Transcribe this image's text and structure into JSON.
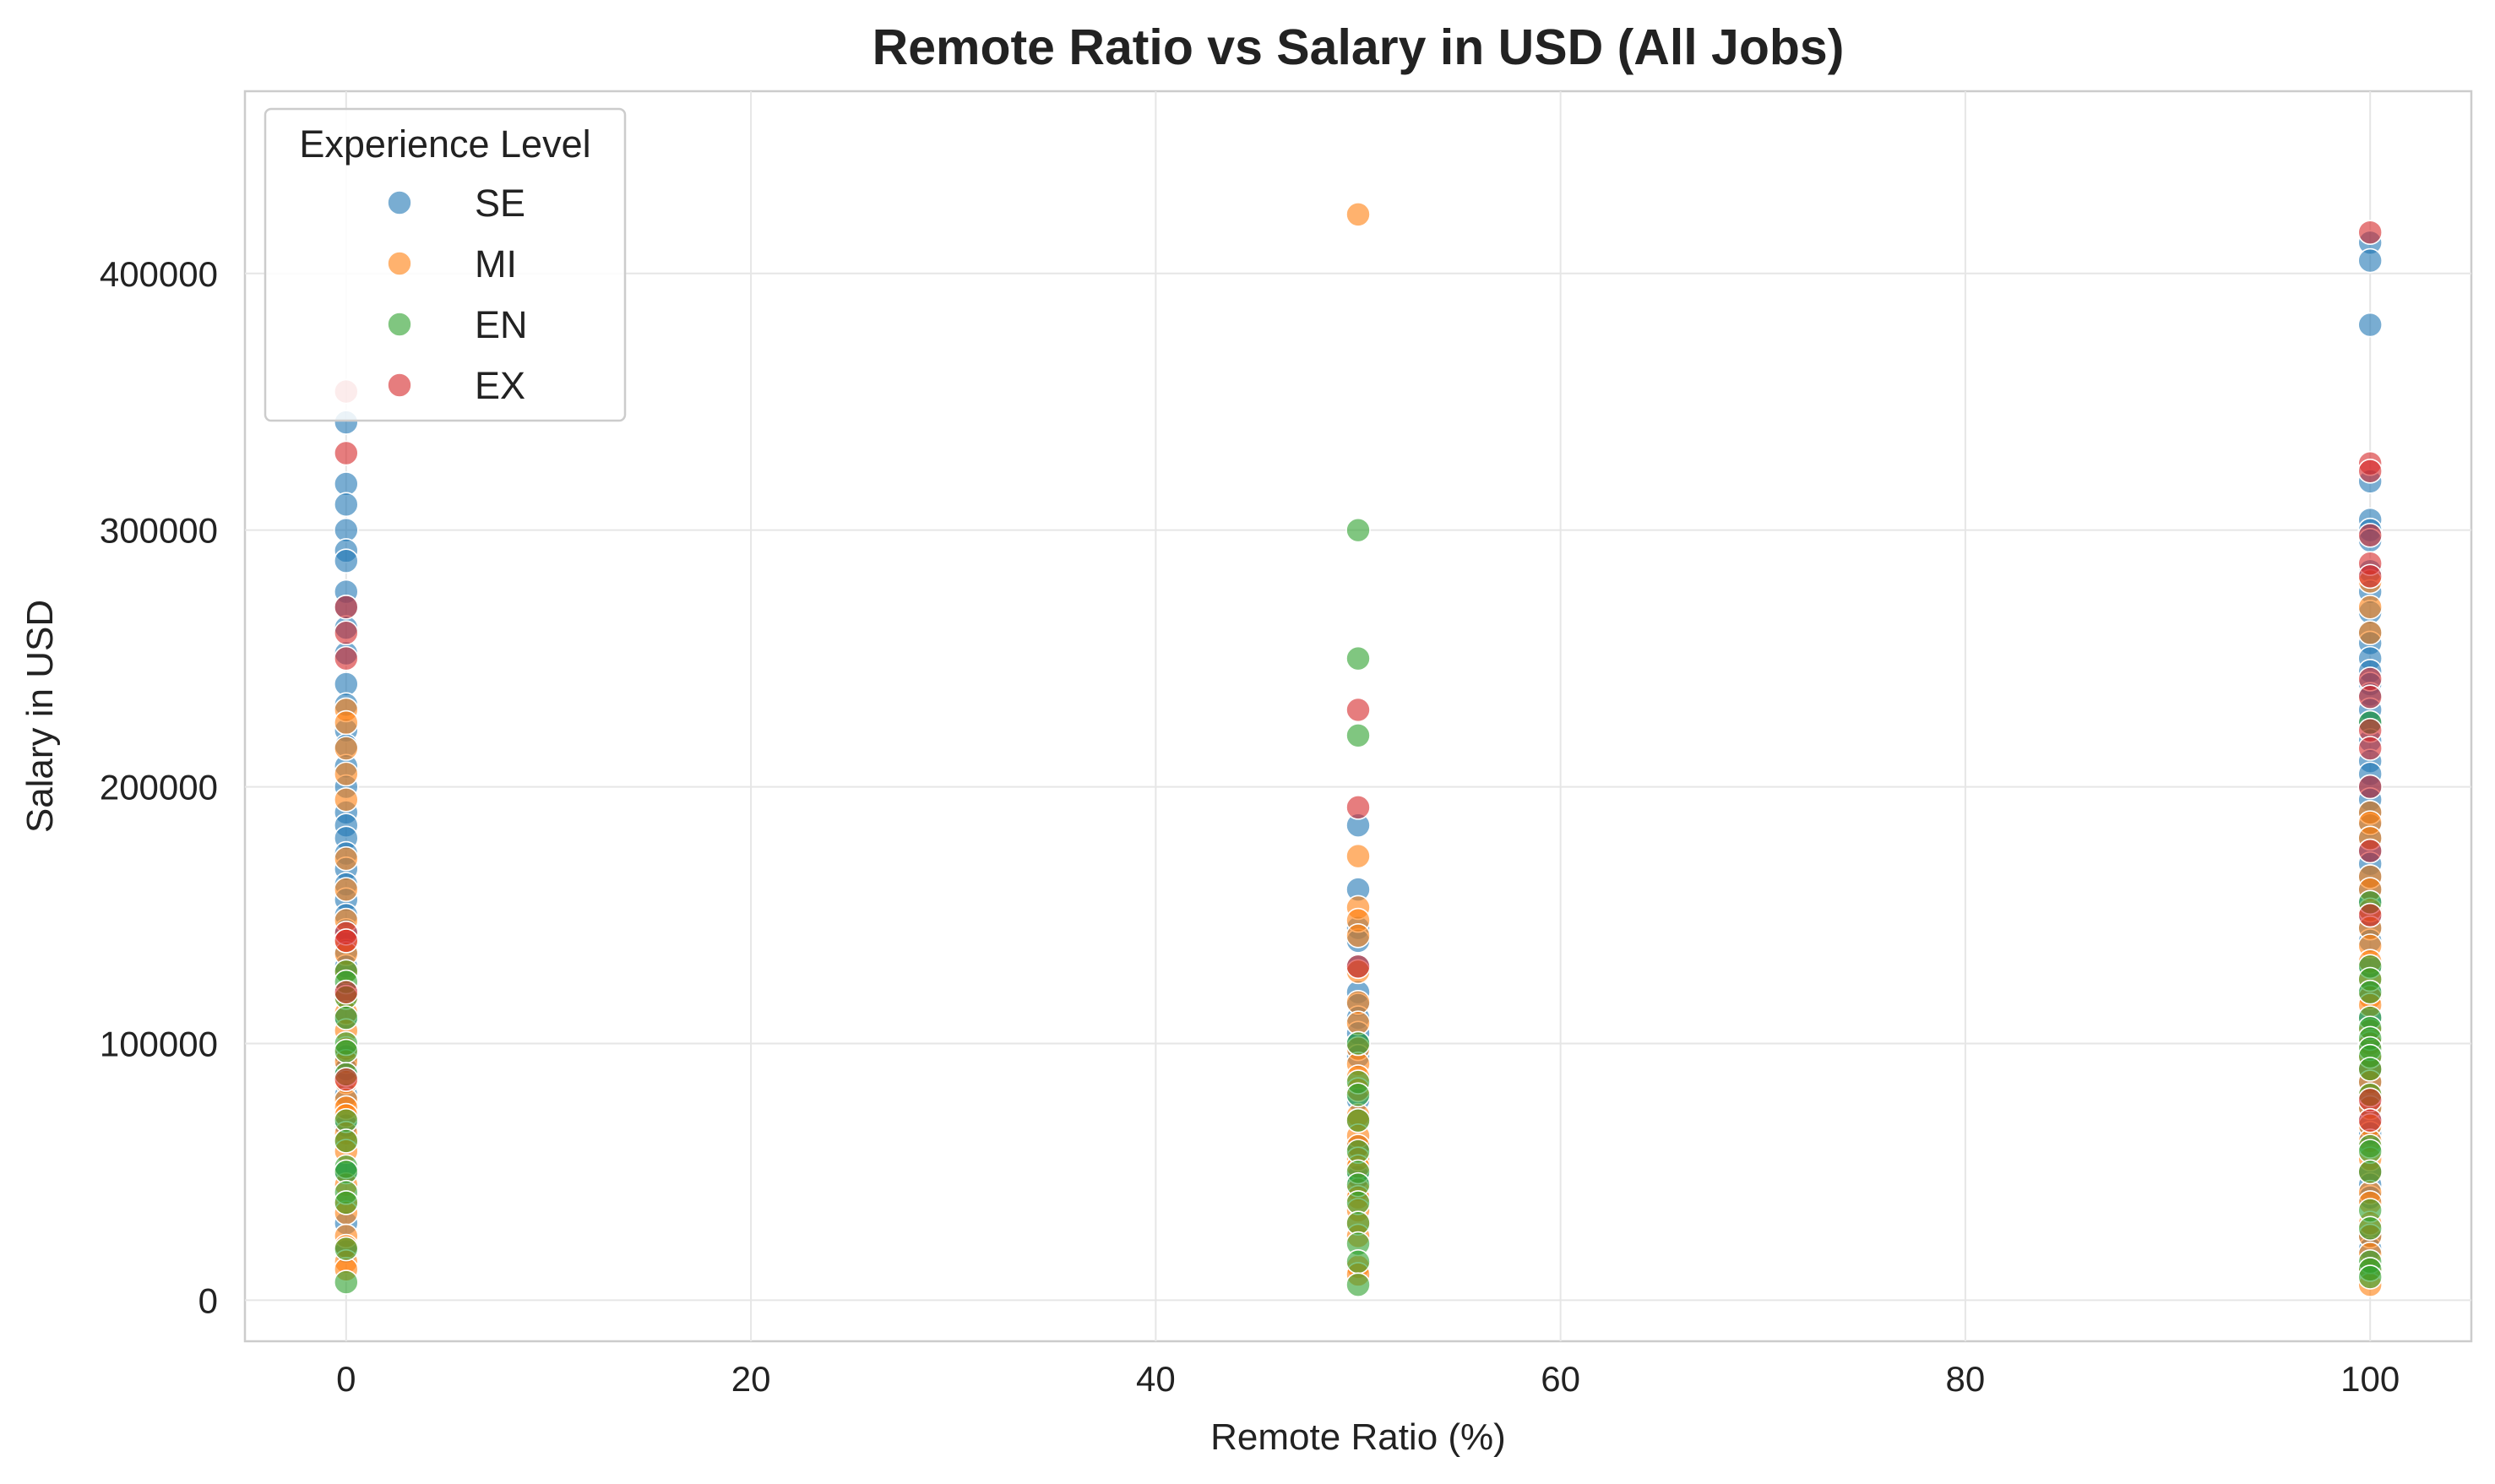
{
  "chart_data": {
    "type": "scatter",
    "title": "Remote Ratio vs Salary in USD (All Jobs)",
    "xlabel": "Remote Ratio (%)",
    "ylabel": "Salary in USD",
    "xlim": [
      -5,
      105
    ],
    "ylim": [
      -16000,
      471000
    ],
    "x_ticks": [
      0,
      20,
      40,
      60,
      80,
      100
    ],
    "y_ticks": [
      0,
      100000,
      200000,
      300000,
      400000
    ],
    "grid": true,
    "legend": {
      "title": "Experience Level",
      "placement": "top-left"
    },
    "point_alpha": 0.6,
    "series": [
      {
        "name": "SE",
        "color": "#1f77b4",
        "points": [
          [
            0,
            342000
          ],
          [
            0,
            318000
          ],
          [
            0,
            310000
          ],
          [
            0,
            300000
          ],
          [
            0,
            292000
          ],
          [
            0,
            288000
          ],
          [
            0,
            276000
          ],
          [
            0,
            270000
          ],
          [
            0,
            262000
          ],
          [
            0,
            252000
          ],
          [
            0,
            240000
          ],
          [
            0,
            232000
          ],
          [
            0,
            222000
          ],
          [
            0,
            216000
          ],
          [
            0,
            208000
          ],
          [
            0,
            200000
          ],
          [
            0,
            190000
          ],
          [
            0,
            185000
          ],
          [
            0,
            180000
          ],
          [
            0,
            174000
          ],
          [
            0,
            168000
          ],
          [
            0,
            162000
          ],
          [
            0,
            156000
          ],
          [
            0,
            150000
          ],
          [
            0,
            144000
          ],
          [
            0,
            136000
          ],
          [
            0,
            130000
          ],
          [
            0,
            120000
          ],
          [
            0,
            110000
          ],
          [
            0,
            95000
          ],
          [
            0,
            90000
          ],
          [
            0,
            80000
          ],
          [
            0,
            68000
          ],
          [
            0,
            50000
          ],
          [
            0,
            30000
          ],
          [
            0,
            19000
          ],
          [
            50,
            185000
          ],
          [
            50,
            160000
          ],
          [
            50,
            145000
          ],
          [
            50,
            140000
          ],
          [
            50,
            130000
          ],
          [
            50,
            120000
          ],
          [
            50,
            115000
          ],
          [
            50,
            110000
          ],
          [
            50,
            104000
          ],
          [
            50,
            100000
          ],
          [
            50,
            95000
          ],
          [
            50,
            78000
          ],
          [
            50,
            60000
          ],
          [
            50,
            48000
          ],
          [
            100,
            412000
          ],
          [
            100,
            405000
          ],
          [
            100,
            380000
          ],
          [
            100,
            319000
          ],
          [
            100,
            304000
          ],
          [
            100,
            300000
          ],
          [
            100,
            296000
          ],
          [
            100,
            284000
          ],
          [
            100,
            276000
          ],
          [
            100,
            268000
          ],
          [
            100,
            260000
          ],
          [
            100,
            256000
          ],
          [
            100,
            250000
          ],
          [
            100,
            245000
          ],
          [
            100,
            240000
          ],
          [
            100,
            236000
          ],
          [
            100,
            230000
          ],
          [
            100,
            225000
          ],
          [
            100,
            218000
          ],
          [
            100,
            210000
          ],
          [
            100,
            205000
          ],
          [
            100,
            200000
          ],
          [
            100,
            195000
          ],
          [
            100,
            190000
          ],
          [
            100,
            185000
          ],
          [
            100,
            180000
          ],
          [
            100,
            175000
          ],
          [
            100,
            170000
          ],
          [
            100,
            165000
          ],
          [
            100,
            160000
          ],
          [
            100,
            155000
          ],
          [
            100,
            150000
          ],
          [
            100,
            145000
          ],
          [
            100,
            140000
          ],
          [
            100,
            130000
          ],
          [
            100,
            120000
          ],
          [
            100,
            110000
          ],
          [
            100,
            100000
          ],
          [
            100,
            90000
          ],
          [
            100,
            85000
          ],
          [
            100,
            75000
          ],
          [
            100,
            70000
          ],
          [
            100,
            65000
          ],
          [
            100,
            50000
          ],
          [
            100,
            45000
          ],
          [
            100,
            40000
          ],
          [
            100,
            25000
          ],
          [
            100,
            20000
          ]
        ]
      },
      {
        "name": "MI",
        "color": "#ff7f0e",
        "points": [
          [
            0,
            230000
          ],
          [
            0,
            225000
          ],
          [
            0,
            215000
          ],
          [
            0,
            205000
          ],
          [
            0,
            195000
          ],
          [
            0,
            172000
          ],
          [
            0,
            160000
          ],
          [
            0,
            148000
          ],
          [
            0,
            140000
          ],
          [
            0,
            135000
          ],
          [
            0,
            128000
          ],
          [
            0,
            118000
          ],
          [
            0,
            112000
          ],
          [
            0,
            105000
          ],
          [
            0,
            98000
          ],
          [
            0,
            93000
          ],
          [
            0,
            85000
          ],
          [
            0,
            78000
          ],
          [
            0,
            75000
          ],
          [
            0,
            72000
          ],
          [
            0,
            65000
          ],
          [
            0,
            62000
          ],
          [
            0,
            58000
          ],
          [
            0,
            45000
          ],
          [
            0,
            38000
          ],
          [
            0,
            34000
          ],
          [
            0,
            25000
          ],
          [
            0,
            21000
          ],
          [
            0,
            15000
          ],
          [
            0,
            12000
          ],
          [
            50,
            423000
          ],
          [
            50,
            173000
          ],
          [
            50,
            153000
          ],
          [
            50,
            148000
          ],
          [
            50,
            142000
          ],
          [
            50,
            128000
          ],
          [
            50,
            116000
          ],
          [
            50,
            108000
          ],
          [
            50,
            98000
          ],
          [
            50,
            92000
          ],
          [
            50,
            87000
          ],
          [
            50,
            82000
          ],
          [
            50,
            72000
          ],
          [
            50,
            70000
          ],
          [
            50,
            64000
          ],
          [
            50,
            60000
          ],
          [
            50,
            55000
          ],
          [
            50,
            52000
          ],
          [
            50,
            43000
          ],
          [
            50,
            40000
          ],
          [
            50,
            35000
          ],
          [
            50,
            30000
          ],
          [
            50,
            25000
          ],
          [
            50,
            13000
          ],
          [
            50,
            10000
          ],
          [
            100,
            280000
          ],
          [
            100,
            270000
          ],
          [
            100,
            260000
          ],
          [
            100,
            190000
          ],
          [
            100,
            186000
          ],
          [
            100,
            180000
          ],
          [
            100,
            165000
          ],
          [
            100,
            160000
          ],
          [
            100,
            152000
          ],
          [
            100,
            145000
          ],
          [
            100,
            138000
          ],
          [
            100,
            132000
          ],
          [
            100,
            125000
          ],
          [
            100,
            118000
          ],
          [
            100,
            115000
          ],
          [
            100,
            105000
          ],
          [
            100,
            100000
          ],
          [
            100,
            95000
          ],
          [
            100,
            90000
          ],
          [
            100,
            85000
          ],
          [
            100,
            80000
          ],
          [
            100,
            75000
          ],
          [
            100,
            68000
          ],
          [
            100,
            62000
          ],
          [
            100,
            55000
          ],
          [
            100,
            50000
          ],
          [
            100,
            42000
          ],
          [
            100,
            38000
          ],
          [
            100,
            30000
          ],
          [
            100,
            25000
          ],
          [
            100,
            18000
          ],
          [
            100,
            12000
          ],
          [
            100,
            6000
          ]
        ]
      },
      {
        "name": "EN",
        "color": "#2ca02c",
        "points": [
          [
            0,
            128000
          ],
          [
            0,
            124000
          ],
          [
            0,
            118000
          ],
          [
            0,
            110000
          ],
          [
            0,
            100000
          ],
          [
            0,
            97000
          ],
          [
            0,
            88000
          ],
          [
            0,
            70000
          ],
          [
            0,
            62000
          ],
          [
            0,
            52000
          ],
          [
            0,
            50000
          ],
          [
            0,
            42000
          ],
          [
            0,
            38000
          ],
          [
            0,
            20000
          ],
          [
            0,
            7000
          ],
          [
            50,
            300000
          ],
          [
            50,
            250000
          ],
          [
            50,
            220000
          ],
          [
            50,
            100000
          ],
          [
            50,
            85000
          ],
          [
            50,
            80000
          ],
          [
            50,
            70000
          ],
          [
            50,
            58000
          ],
          [
            50,
            50000
          ],
          [
            50,
            45000
          ],
          [
            50,
            38000
          ],
          [
            50,
            30000
          ],
          [
            50,
            22000
          ],
          [
            50,
            15000
          ],
          [
            50,
            6000
          ],
          [
            100,
            225000
          ],
          [
            100,
            155000
          ],
          [
            100,
            130000
          ],
          [
            100,
            125000
          ],
          [
            100,
            120000
          ],
          [
            100,
            110000
          ],
          [
            100,
            106000
          ],
          [
            100,
            102000
          ],
          [
            100,
            98000
          ],
          [
            100,
            95000
          ],
          [
            100,
            90000
          ],
          [
            100,
            80000
          ],
          [
            100,
            60000
          ],
          [
            100,
            58000
          ],
          [
            100,
            50000
          ],
          [
            100,
            35000
          ],
          [
            100,
            28000
          ],
          [
            100,
            15000
          ],
          [
            100,
            12000
          ],
          [
            100,
            9000
          ]
        ]
      },
      {
        "name": "EX",
        "color": "#d62728",
        "points": [
          [
            0,
            354000
          ],
          [
            0,
            330000
          ],
          [
            0,
            270000
          ],
          [
            0,
            260000
          ],
          [
            0,
            250000
          ],
          [
            0,
            143000
          ],
          [
            0,
            140000
          ],
          [
            0,
            120000
          ],
          [
            0,
            86000
          ],
          [
            50,
            230000
          ],
          [
            50,
            192000
          ],
          [
            50,
            130000
          ],
          [
            100,
            416000
          ],
          [
            100,
            326000
          ],
          [
            100,
            323000
          ],
          [
            100,
            298000
          ],
          [
            100,
            287000
          ],
          [
            100,
            282000
          ],
          [
            100,
            242000
          ],
          [
            100,
            235000
          ],
          [
            100,
            222000
          ],
          [
            100,
            215000
          ],
          [
            100,
            200000
          ],
          [
            100,
            175000
          ],
          [
            100,
            150000
          ],
          [
            100,
            78000
          ],
          [
            100,
            70000
          ]
        ]
      }
    ]
  }
}
